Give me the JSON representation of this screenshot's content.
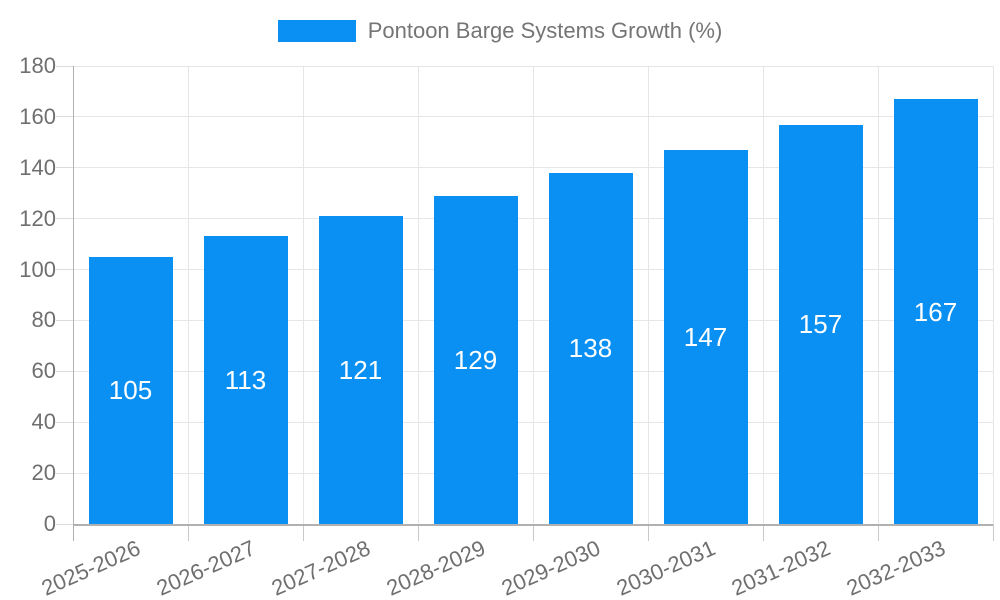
{
  "chart_data": {
    "type": "bar",
    "title": "Pontoon Barge Systems Growth (%)",
    "legend_label": "Pontoon Barge Systems Growth (%)",
    "legend_position": "top",
    "categories": [
      "2025-2026",
      "2026-2027",
      "2027-2028",
      "2028-2029",
      "2029-2030",
      "2030-2031",
      "2031-2032",
      "2032-2033"
    ],
    "values": [
      105,
      113,
      121,
      129,
      138,
      147,
      157,
      167
    ],
    "xlabel": "",
    "ylabel": "",
    "ylim": [
      0,
      180
    ],
    "ytick_step": 20,
    "grid": true,
    "bar_value_labels": [
      105,
      113,
      121,
      129,
      138,
      147,
      157,
      167
    ]
  },
  "colors": {
    "bar": "#0a90f2",
    "bar_label": "#ffffff",
    "grid": "#e6e6e6",
    "tick": "#c9c9c9",
    "axis": "#b0b0b0",
    "axis_text": "#6f6f6f",
    "legend_text": "#757575",
    "background": "#ffffff"
  }
}
